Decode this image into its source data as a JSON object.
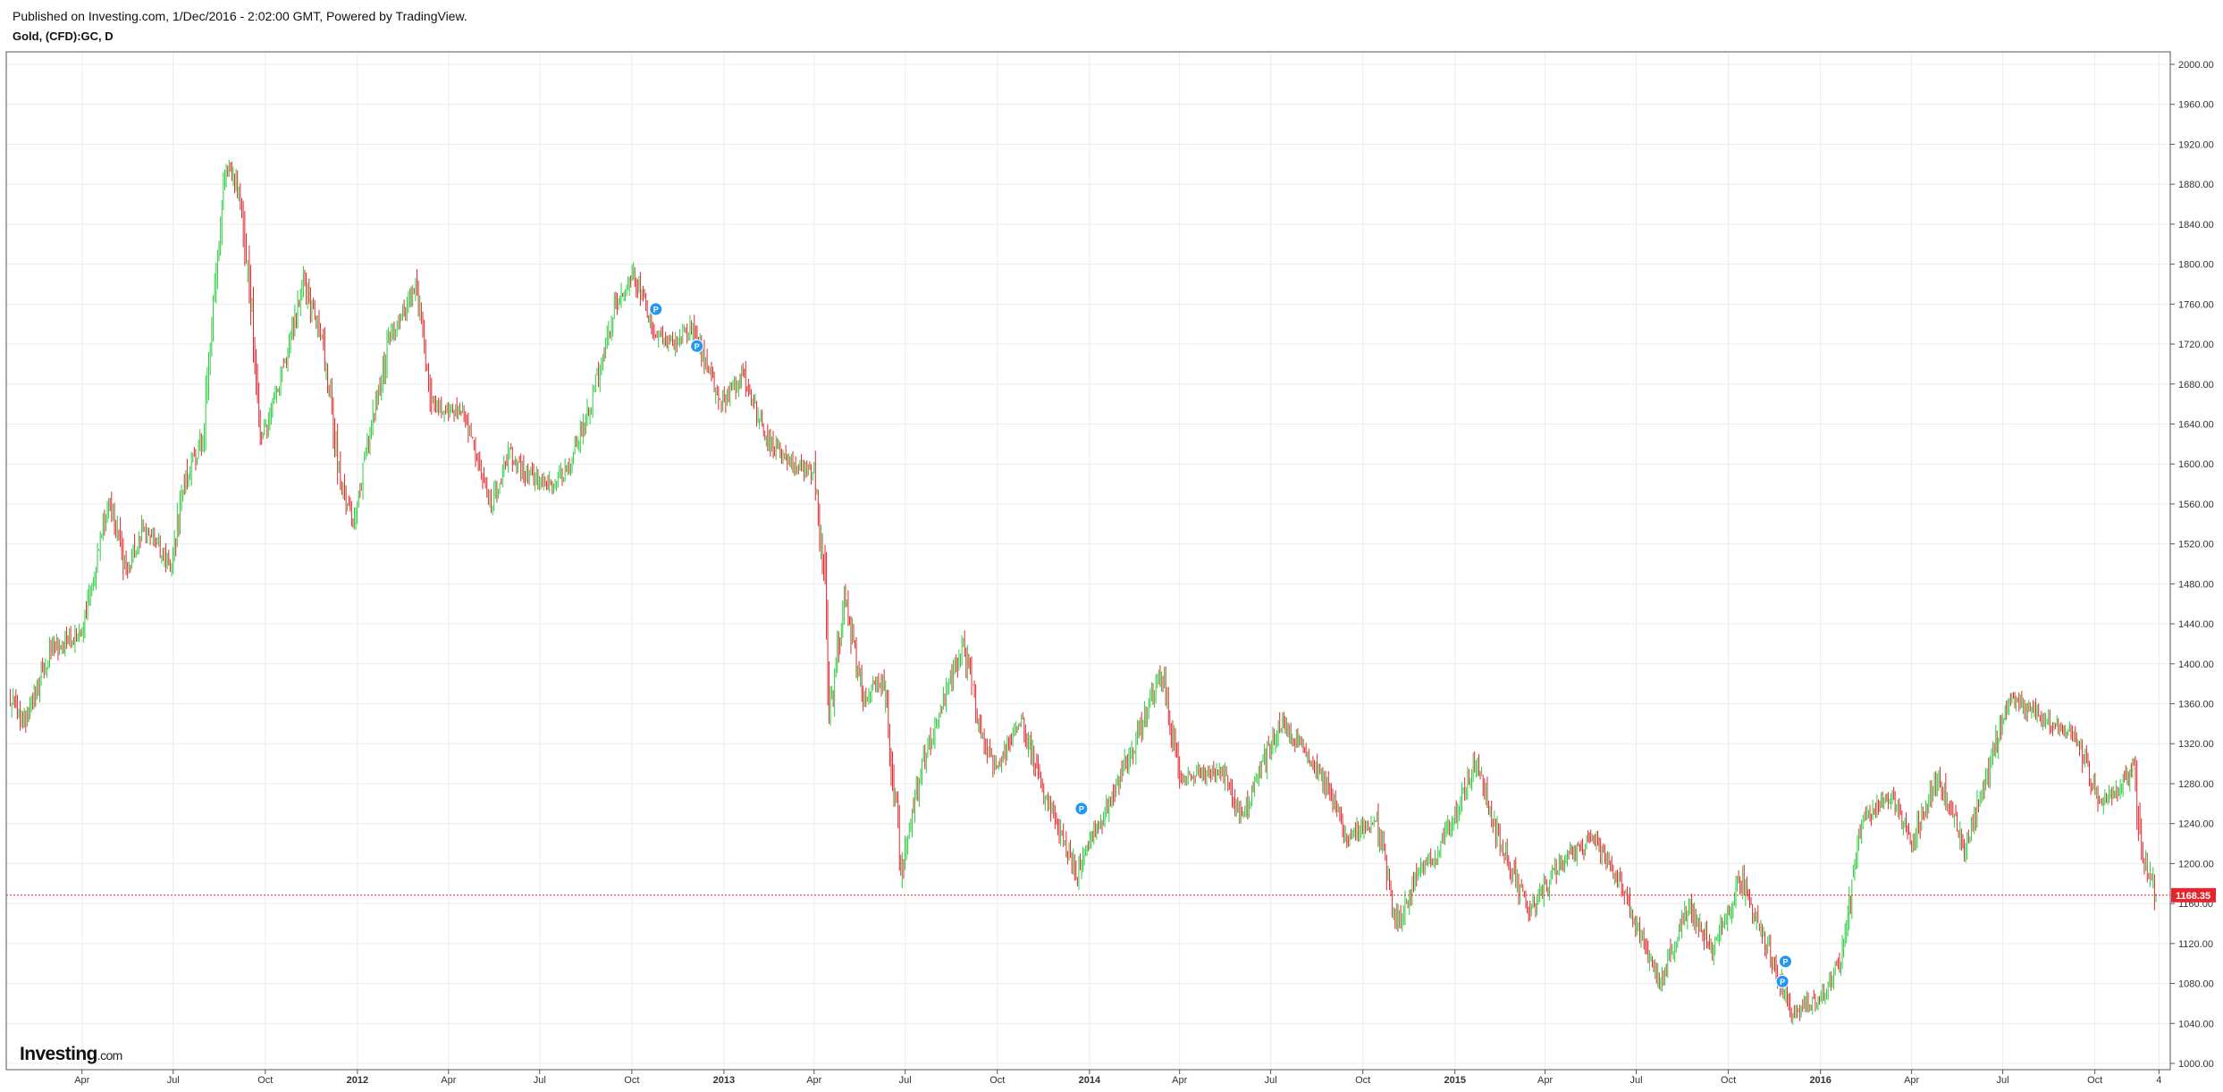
{
  "header": {
    "published": "Published on Investing.com, 1/Dec/2016 - 2:02:00 GMT, Powered by TradingView.",
    "symbol": "Gold, (CFD):GC, D"
  },
  "logo": {
    "main": "Investing",
    "suffix": ".com"
  },
  "colors": {
    "up": "#2ecc40",
    "down": "#e0282e",
    "grid": "#ececec",
    "axis": "#555555",
    "price_line": "#e3262d",
    "price_label_bg": "#e3262d",
    "marker": "#2196f3"
  },
  "chart_data": {
    "type": "candlestick",
    "title": "Gold, (CFD):GC, D",
    "y_axis": {
      "min": 1000,
      "max": 2000,
      "step": 40,
      "position": "right",
      "ticks": [
        "2000.00",
        "1960.00",
        "1920.00",
        "1880.00",
        "1840.00",
        "1800.00",
        "1760.00",
        "1720.00",
        "1680.00",
        "1640.00",
        "1600.00",
        "1560.00",
        "1520.00",
        "1480.00",
        "1440.00",
        "1400.00",
        "1360.00",
        "1320.00",
        "1280.00",
        "1240.00",
        "1200.00",
        "1160.00",
        "1120.00",
        "1080.00",
        "1040.00",
        "1000.00"
      ]
    },
    "x_axis": {
      "ticks": [
        {
          "label": "Apr",
          "date": "2011-04-01"
        },
        {
          "label": "Jul",
          "date": "2011-07-01"
        },
        {
          "label": "Oct",
          "date": "2011-10-01"
        },
        {
          "label": "2012",
          "date": "2012-01-01",
          "bold": true
        },
        {
          "label": "Apr",
          "date": "2012-04-01"
        },
        {
          "label": "Jul",
          "date": "2012-07-01"
        },
        {
          "label": "Oct",
          "date": "2012-10-01"
        },
        {
          "label": "2013",
          "date": "2013-01-01",
          "bold": true
        },
        {
          "label": "Apr",
          "date": "2013-04-01"
        },
        {
          "label": "Jul",
          "date": "2013-07-01"
        },
        {
          "label": "Oct",
          "date": "2013-10-01"
        },
        {
          "label": "2014",
          "date": "2014-01-01",
          "bold": true
        },
        {
          "label": "Apr",
          "date": "2014-04-01"
        },
        {
          "label": "Jul",
          "date": "2014-07-01"
        },
        {
          "label": "Oct",
          "date": "2014-10-01"
        },
        {
          "label": "2015",
          "date": "2015-01-01",
          "bold": true
        },
        {
          "label": "Apr",
          "date": "2015-04-01"
        },
        {
          "label": "Jul",
          "date": "2015-07-01"
        },
        {
          "label": "Oct",
          "date": "2015-10-01"
        },
        {
          "label": "2016",
          "date": "2016-01-01",
          "bold": true
        },
        {
          "label": "Apr",
          "date": "2016-04-01"
        },
        {
          "label": "Jul",
          "date": "2016-07-01"
        },
        {
          "label": "Oct",
          "date": "2016-10-01"
        },
        {
          "label": "4",
          "date": "2016-12-04"
        }
      ]
    },
    "date_range": [
      "2011-01-18",
      "2016-12-01"
    ],
    "current_price": 1168.35,
    "current_price_label": "1168.35",
    "series": [
      {
        "date": "2011-01-18",
        "close": 1370
      },
      {
        "date": "2011-02-01",
        "close": 1340
      },
      {
        "date": "2011-03-01",
        "close": 1415
      },
      {
        "date": "2011-04-01",
        "close": 1430
      },
      {
        "date": "2011-04-29",
        "close": 1565
      },
      {
        "date": "2011-05-15",
        "close": 1490
      },
      {
        "date": "2011-06-01",
        "close": 1540
      },
      {
        "date": "2011-06-28",
        "close": 1500
      },
      {
        "date": "2011-07-15",
        "close": 1590
      },
      {
        "date": "2011-08-01",
        "close": 1630
      },
      {
        "date": "2011-08-10",
        "close": 1760
      },
      {
        "date": "2011-08-23",
        "close": 1900
      },
      {
        "date": "2011-09-06",
        "close": 1870
      },
      {
        "date": "2011-09-15",
        "close": 1780
      },
      {
        "date": "2011-09-26",
        "close": 1620
      },
      {
        "date": "2011-10-15",
        "close": 1680
      },
      {
        "date": "2011-11-08",
        "close": 1780
      },
      {
        "date": "2011-11-28",
        "close": 1720
      },
      {
        "date": "2011-12-15",
        "close": 1580
      },
      {
        "date": "2011-12-29",
        "close": 1540
      },
      {
        "date": "2012-01-15",
        "close": 1640
      },
      {
        "date": "2012-02-01",
        "close": 1720
      },
      {
        "date": "2012-02-28",
        "close": 1780
      },
      {
        "date": "2012-03-15",
        "close": 1660
      },
      {
        "date": "2012-04-15",
        "close": 1650
      },
      {
        "date": "2012-05-15",
        "close": 1560
      },
      {
        "date": "2012-06-01",
        "close": 1610
      },
      {
        "date": "2012-06-15",
        "close": 1590
      },
      {
        "date": "2012-07-15",
        "close": 1580
      },
      {
        "date": "2012-08-01",
        "close": 1600
      },
      {
        "date": "2012-08-23",
        "close": 1670
      },
      {
        "date": "2012-09-15",
        "close": 1760
      },
      {
        "date": "2012-10-04",
        "close": 1790
      },
      {
        "date": "2012-10-22",
        "close": 1730
      },
      {
        "date": "2012-11-15",
        "close": 1720
      },
      {
        "date": "2012-12-01",
        "close": 1740
      },
      {
        "date": "2012-12-28",
        "close": 1660
      },
      {
        "date": "2013-01-20",
        "close": 1690
      },
      {
        "date": "2013-02-15",
        "close": 1620
      },
      {
        "date": "2013-03-15",
        "close": 1600
      },
      {
        "date": "2013-04-01",
        "close": 1590
      },
      {
        "date": "2013-04-12",
        "close": 1480
      },
      {
        "date": "2013-04-16",
        "close": 1340
      },
      {
        "date": "2013-05-01",
        "close": 1470
      },
      {
        "date": "2013-05-20",
        "close": 1370
      },
      {
        "date": "2013-06-10",
        "close": 1380
      },
      {
        "date": "2013-06-28",
        "close": 1190
      },
      {
        "date": "2013-07-15",
        "close": 1290
      },
      {
        "date": "2013-08-28",
        "close": 1420
      },
      {
        "date": "2013-09-15",
        "close": 1330
      },
      {
        "date": "2013-10-01",
        "close": 1290
      },
      {
        "date": "2013-10-25",
        "close": 1350
      },
      {
        "date": "2013-11-15",
        "close": 1270
      },
      {
        "date": "2013-12-20",
        "close": 1190
      },
      {
        "date": "2014-01-15",
        "close": 1250
      },
      {
        "date": "2014-02-15",
        "close": 1320
      },
      {
        "date": "2014-03-14",
        "close": 1390
      },
      {
        "date": "2014-04-01",
        "close": 1290
      },
      {
        "date": "2014-05-15",
        "close": 1290
      },
      {
        "date": "2014-06-01",
        "close": 1245
      },
      {
        "date": "2014-07-10",
        "close": 1340
      },
      {
        "date": "2014-08-15",
        "close": 1300
      },
      {
        "date": "2014-09-15",
        "close": 1230
      },
      {
        "date": "2014-10-15",
        "close": 1240
      },
      {
        "date": "2014-11-05",
        "close": 1140
      },
      {
        "date": "2014-11-25",
        "close": 1190
      },
      {
        "date": "2014-12-15",
        "close": 1210
      },
      {
        "date": "2015-01-22",
        "close": 1300
      },
      {
        "date": "2015-02-15",
        "close": 1220
      },
      {
        "date": "2015-03-17",
        "close": 1150
      },
      {
        "date": "2015-04-15",
        "close": 1200
      },
      {
        "date": "2015-05-18",
        "close": 1225
      },
      {
        "date": "2015-06-15",
        "close": 1180
      },
      {
        "date": "2015-07-24",
        "close": 1080
      },
      {
        "date": "2015-08-24",
        "close": 1160
      },
      {
        "date": "2015-09-15",
        "close": 1110
      },
      {
        "date": "2015-10-14",
        "close": 1185
      },
      {
        "date": "2015-11-01",
        "close": 1140
      },
      {
        "date": "2015-12-03",
        "close": 1050
      },
      {
        "date": "2015-12-31",
        "close": 1065
      },
      {
        "date": "2016-01-20",
        "close": 1100
      },
      {
        "date": "2016-02-11",
        "close": 1240
      },
      {
        "date": "2016-03-10",
        "close": 1270
      },
      {
        "date": "2016-04-01",
        "close": 1220
      },
      {
        "date": "2016-04-28",
        "close": 1290
      },
      {
        "date": "2016-05-25",
        "close": 1210
      },
      {
        "date": "2016-06-24",
        "close": 1320
      },
      {
        "date": "2016-07-06",
        "close": 1365
      },
      {
        "date": "2016-08-10",
        "close": 1345
      },
      {
        "date": "2016-09-10",
        "close": 1330
      },
      {
        "date": "2016-10-04",
        "close": 1265
      },
      {
        "date": "2016-10-25",
        "close": 1270
      },
      {
        "date": "2016-11-09",
        "close": 1300
      },
      {
        "date": "2016-11-15",
        "close": 1220
      },
      {
        "date": "2016-12-01",
        "close": 1168.35
      }
    ],
    "markers": [
      {
        "label": "P",
        "date": "2012-10-25",
        "price": 1755
      },
      {
        "label": "P",
        "date": "2012-12-05",
        "price": 1718
      },
      {
        "label": "P",
        "date": "2013-12-24",
        "price": 1255
      },
      {
        "label": "P",
        "date": "2015-11-27",
        "price": 1102
      },
      {
        "label": "P",
        "date": "2015-11-24",
        "price": 1082
      }
    ]
  }
}
